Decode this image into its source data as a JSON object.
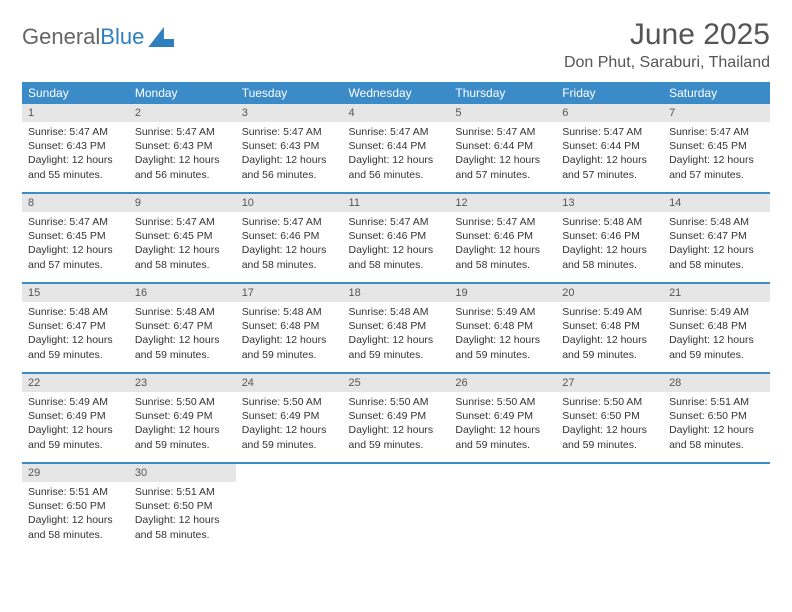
{
  "brand": {
    "part1": "General",
    "part2": "Blue"
  },
  "title": "June 2025",
  "location": "Don Phut, Saraburi, Thailand",
  "colors": {
    "header_bg": "#3b8bc9",
    "header_text": "#ffffff",
    "daynum_bg": "#e6e6e6",
    "body_text": "#333333",
    "title_text": "#555555",
    "brand_blue": "#2f7fbf",
    "page_bg": "#ffffff"
  },
  "typography": {
    "title_fontsize": 30,
    "location_fontsize": 16,
    "header_fontsize": 12,
    "daynum_fontsize": 11,
    "body_fontsize": 10.5,
    "font_family": "Arial"
  },
  "layout": {
    "columns": 7,
    "rows": 5,
    "row_separator_color": "#3b8bc9",
    "row_separator_height": 2
  },
  "weekdays": [
    "Sunday",
    "Monday",
    "Tuesday",
    "Wednesday",
    "Thursday",
    "Friday",
    "Saturday"
  ],
  "days": [
    {
      "n": "1",
      "sr": "Sunrise: 5:47 AM",
      "ss": "Sunset: 6:43 PM",
      "dl": "Daylight: 12 hours and 55 minutes."
    },
    {
      "n": "2",
      "sr": "Sunrise: 5:47 AM",
      "ss": "Sunset: 6:43 PM",
      "dl": "Daylight: 12 hours and 56 minutes."
    },
    {
      "n": "3",
      "sr": "Sunrise: 5:47 AM",
      "ss": "Sunset: 6:43 PM",
      "dl": "Daylight: 12 hours and 56 minutes."
    },
    {
      "n": "4",
      "sr": "Sunrise: 5:47 AM",
      "ss": "Sunset: 6:44 PM",
      "dl": "Daylight: 12 hours and 56 minutes."
    },
    {
      "n": "5",
      "sr": "Sunrise: 5:47 AM",
      "ss": "Sunset: 6:44 PM",
      "dl": "Daylight: 12 hours and 57 minutes."
    },
    {
      "n": "6",
      "sr": "Sunrise: 5:47 AM",
      "ss": "Sunset: 6:44 PM",
      "dl": "Daylight: 12 hours and 57 minutes."
    },
    {
      "n": "7",
      "sr": "Sunrise: 5:47 AM",
      "ss": "Sunset: 6:45 PM",
      "dl": "Daylight: 12 hours and 57 minutes."
    },
    {
      "n": "8",
      "sr": "Sunrise: 5:47 AM",
      "ss": "Sunset: 6:45 PM",
      "dl": "Daylight: 12 hours and 57 minutes."
    },
    {
      "n": "9",
      "sr": "Sunrise: 5:47 AM",
      "ss": "Sunset: 6:45 PM",
      "dl": "Daylight: 12 hours and 58 minutes."
    },
    {
      "n": "10",
      "sr": "Sunrise: 5:47 AM",
      "ss": "Sunset: 6:46 PM",
      "dl": "Daylight: 12 hours and 58 minutes."
    },
    {
      "n": "11",
      "sr": "Sunrise: 5:47 AM",
      "ss": "Sunset: 6:46 PM",
      "dl": "Daylight: 12 hours and 58 minutes."
    },
    {
      "n": "12",
      "sr": "Sunrise: 5:47 AM",
      "ss": "Sunset: 6:46 PM",
      "dl": "Daylight: 12 hours and 58 minutes."
    },
    {
      "n": "13",
      "sr": "Sunrise: 5:48 AM",
      "ss": "Sunset: 6:46 PM",
      "dl": "Daylight: 12 hours and 58 minutes."
    },
    {
      "n": "14",
      "sr": "Sunrise: 5:48 AM",
      "ss": "Sunset: 6:47 PM",
      "dl": "Daylight: 12 hours and 58 minutes."
    },
    {
      "n": "15",
      "sr": "Sunrise: 5:48 AM",
      "ss": "Sunset: 6:47 PM",
      "dl": "Daylight: 12 hours and 59 minutes."
    },
    {
      "n": "16",
      "sr": "Sunrise: 5:48 AM",
      "ss": "Sunset: 6:47 PM",
      "dl": "Daylight: 12 hours and 59 minutes."
    },
    {
      "n": "17",
      "sr": "Sunrise: 5:48 AM",
      "ss": "Sunset: 6:48 PM",
      "dl": "Daylight: 12 hours and 59 minutes."
    },
    {
      "n": "18",
      "sr": "Sunrise: 5:48 AM",
      "ss": "Sunset: 6:48 PM",
      "dl": "Daylight: 12 hours and 59 minutes."
    },
    {
      "n": "19",
      "sr": "Sunrise: 5:49 AM",
      "ss": "Sunset: 6:48 PM",
      "dl": "Daylight: 12 hours and 59 minutes."
    },
    {
      "n": "20",
      "sr": "Sunrise: 5:49 AM",
      "ss": "Sunset: 6:48 PM",
      "dl": "Daylight: 12 hours and 59 minutes."
    },
    {
      "n": "21",
      "sr": "Sunrise: 5:49 AM",
      "ss": "Sunset: 6:48 PM",
      "dl": "Daylight: 12 hours and 59 minutes."
    },
    {
      "n": "22",
      "sr": "Sunrise: 5:49 AM",
      "ss": "Sunset: 6:49 PM",
      "dl": "Daylight: 12 hours and 59 minutes."
    },
    {
      "n": "23",
      "sr": "Sunrise: 5:50 AM",
      "ss": "Sunset: 6:49 PM",
      "dl": "Daylight: 12 hours and 59 minutes."
    },
    {
      "n": "24",
      "sr": "Sunrise: 5:50 AM",
      "ss": "Sunset: 6:49 PM",
      "dl": "Daylight: 12 hours and 59 minutes."
    },
    {
      "n": "25",
      "sr": "Sunrise: 5:50 AM",
      "ss": "Sunset: 6:49 PM",
      "dl": "Daylight: 12 hours and 59 minutes."
    },
    {
      "n": "26",
      "sr": "Sunrise: 5:50 AM",
      "ss": "Sunset: 6:49 PM",
      "dl": "Daylight: 12 hours and 59 minutes."
    },
    {
      "n": "27",
      "sr": "Sunrise: 5:50 AM",
      "ss": "Sunset: 6:50 PM",
      "dl": "Daylight: 12 hours and 59 minutes."
    },
    {
      "n": "28",
      "sr": "Sunrise: 5:51 AM",
      "ss": "Sunset: 6:50 PM",
      "dl": "Daylight: 12 hours and 58 minutes."
    },
    {
      "n": "29",
      "sr": "Sunrise: 5:51 AM",
      "ss": "Sunset: 6:50 PM",
      "dl": "Daylight: 12 hours and 58 minutes."
    },
    {
      "n": "30",
      "sr": "Sunrise: 5:51 AM",
      "ss": "Sunset: 6:50 PM",
      "dl": "Daylight: 12 hours and 58 minutes."
    }
  ]
}
